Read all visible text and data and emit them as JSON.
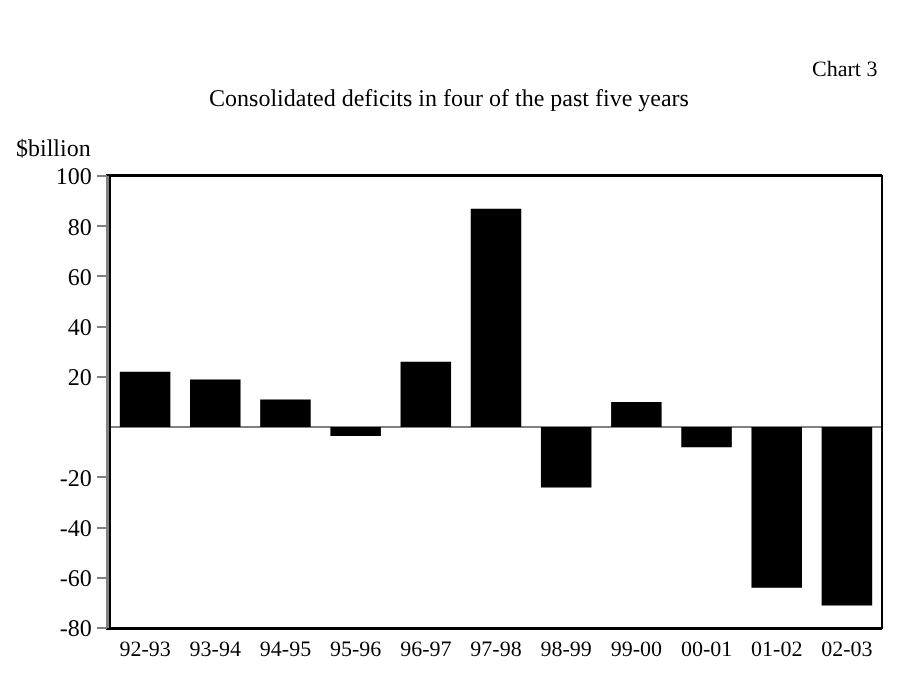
{
  "chart_data": {
    "type": "bar",
    "title": "Consolidated deficits in four of the past five years",
    "ylabel": "$billion",
    "annotations": [
      "Chart 3"
    ],
    "categories": [
      "92-93",
      "93-94",
      "94-95",
      "95-96",
      "96-97",
      "97-98",
      "98-99",
      "99-00",
      "00-01",
      "01-02",
      "02-03"
    ],
    "values": [
      22,
      19,
      11,
      -3.5,
      26,
      87,
      -24,
      10,
      -8,
      -64,
      -71
    ],
    "color": "#000000",
    "ylim": [
      -80,
      100
    ],
    "yticks": [
      -80,
      -60,
      -40,
      -20,
      20,
      40,
      60,
      80,
      100
    ],
    "ref_lines": [
      {
        "axis": "y",
        "value": 0,
        "color": "#808080"
      }
    ],
    "grid": false
  }
}
